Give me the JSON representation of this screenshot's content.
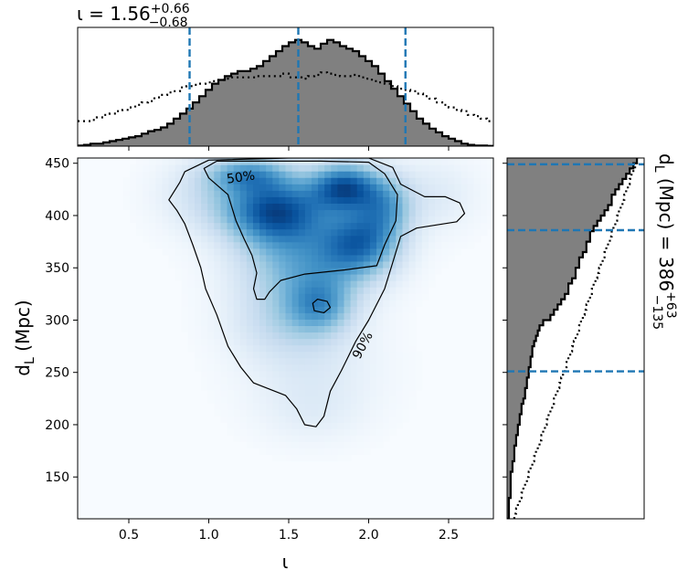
{
  "chart_data": [
    {
      "type": "heatmap",
      "panel": "joint-density",
      "xlabel": "ι",
      "ylabel": "d_L (Mpc)",
      "xlim": [
        0.18,
        2.78
      ],
      "ylim": [
        110,
        455
      ],
      "xticks": [
        0.5,
        1.0,
        1.5,
        2.0,
        2.5
      ],
      "xtick_labels": [
        "0.5",
        "1.0",
        "1.5",
        "2.0",
        "2.5"
      ],
      "yticks": [
        150,
        200,
        250,
        300,
        350,
        400,
        450
      ],
      "ytick_labels": [
        "150",
        "200",
        "250",
        "300",
        "350",
        "400",
        "450"
      ],
      "colormap": "Blues",
      "blobs": [
        {
          "x": 1.42,
          "y": 405,
          "sx": 0.22,
          "sy": 22,
          "w": 1.0
        },
        {
          "x": 1.85,
          "y": 428,
          "sx": 0.15,
          "sy": 16,
          "w": 0.95
        },
        {
          "x": 1.95,
          "y": 375,
          "sx": 0.17,
          "sy": 22,
          "w": 0.75
        },
        {
          "x": 1.6,
          "y": 355,
          "sx": 0.28,
          "sy": 28,
          "w": 0.55
        },
        {
          "x": 1.25,
          "y": 440,
          "sx": 0.18,
          "sy": 12,
          "w": 0.55
        },
        {
          "x": 2.1,
          "y": 410,
          "sx": 0.12,
          "sy": 20,
          "w": 0.5
        },
        {
          "x": 1.7,
          "y": 315,
          "sx": 0.14,
          "sy": 18,
          "w": 0.45
        },
        {
          "x": 1.5,
          "y": 300,
          "sx": 0.25,
          "sy": 25,
          "w": 0.28
        },
        {
          "x": 1.65,
          "y": 250,
          "sx": 0.3,
          "sy": 35,
          "w": 0.14
        },
        {
          "x": 1.65,
          "y": 210,
          "sx": 0.22,
          "sy": 20,
          "w": 0.07
        },
        {
          "x": 1.0,
          "y": 420,
          "sx": 0.22,
          "sy": 25,
          "w": 0.22
        },
        {
          "x": 2.4,
          "y": 420,
          "sx": 0.2,
          "sy": 25,
          "w": 0.15
        }
      ],
      "contours": [
        {
          "label": "50%",
          "label_position": [
            1.2,
            437
          ],
          "label_rotation": -8,
          "points": [
            [
              0.97,
              445
            ],
            [
              1.05,
              452
            ],
            [
              1.4,
              452
            ],
            [
              1.7,
              452
            ],
            [
              2.0,
              451
            ],
            [
              2.1,
              440
            ],
            [
              2.18,
              420
            ],
            [
              2.17,
              395
            ],
            [
              2.1,
              372
            ],
            [
              2.05,
              352
            ],
            [
              1.85,
              348
            ],
            [
              1.6,
              344
            ],
            [
              1.45,
              338
            ],
            [
              1.38,
              327
            ],
            [
              1.35,
              320
            ],
            [
              1.3,
              320
            ],
            [
              1.28,
              330
            ],
            [
              1.3,
              345
            ],
            [
              1.27,
              362
            ],
            [
              1.22,
              378
            ],
            [
              1.17,
              395
            ],
            [
              1.12,
              420
            ],
            [
              1.0,
              436
            ],
            [
              0.97,
              445
            ]
          ]
        },
        {
          "label": "90%",
          "label_position": [
            1.96,
            276
          ],
          "label_rotation": -62,
          "points": [
            [
              0.82,
              432
            ],
            [
              0.85,
              442
            ],
            [
              1.0,
              453
            ],
            [
              1.5,
              455
            ],
            [
              2.0,
              455
            ],
            [
              2.15,
              446
            ],
            [
              2.2,
              430
            ],
            [
              2.35,
              418
            ],
            [
              2.48,
              418
            ],
            [
              2.57,
              412
            ],
            [
              2.6,
              402
            ],
            [
              2.55,
              394
            ],
            [
              2.3,
              388
            ],
            [
              2.2,
              380
            ],
            [
              2.15,
              355
            ],
            [
              2.1,
              330
            ],
            [
              2.0,
              300
            ],
            [
              1.92,
              280
            ],
            [
              1.83,
              252
            ],
            [
              1.76,
              232
            ],
            [
              1.72,
              208
            ],
            [
              1.67,
              198
            ],
            [
              1.6,
              200
            ],
            [
              1.55,
              215
            ],
            [
              1.48,
              228
            ],
            [
              1.28,
              240
            ],
            [
              1.2,
              255
            ],
            [
              1.12,
              275
            ],
            [
              1.05,
              305
            ],
            [
              0.98,
              330
            ],
            [
              0.95,
              350
            ],
            [
              0.9,
              372
            ],
            [
              0.85,
              392
            ],
            [
              0.8,
              405
            ],
            [
              0.75,
              415
            ],
            [
              0.82,
              432
            ]
          ]
        },
        {
          "label": "",
          "points": [
            [
              1.65,
              316
            ],
            [
              1.68,
              320
            ],
            [
              1.74,
              318
            ],
            [
              1.76,
              312
            ],
            [
              1.72,
              307
            ],
            [
              1.66,
              309
            ],
            [
              1.65,
              316
            ]
          ]
        }
      ]
    },
    {
      "type": "histogram",
      "panel": "marginal-iota",
      "title": "ι = 1.56",
      "title_sup": "+0.66",
      "title_sub": "−0.68",
      "xlim": [
        0.18,
        2.78
      ],
      "bin_edges_start": 0.18,
      "bin_width": 0.04,
      "values": [
        0.5,
        1,
        2,
        2,
        3,
        4,
        5,
        6,
        7,
        8,
        10,
        12,
        13,
        15,
        18,
        22,
        26,
        30,
        35,
        40,
        45,
        50,
        53,
        56,
        58,
        60,
        60,
        62,
        64,
        68,
        72,
        76,
        80,
        83,
        85,
        83,
        80,
        78,
        82,
        85,
        83,
        80,
        78,
        76,
        72,
        68,
        64,
        58,
        52,
        46,
        40,
        34,
        28,
        22,
        18,
        14,
        11,
        8,
        6,
        4,
        2,
        1,
        0.5,
        0.5,
        0.2
      ],
      "prior_values": [
        20,
        20,
        21,
        23,
        25,
        26,
        28,
        29,
        31,
        33,
        35,
        36,
        39,
        41,
        43,
        44,
        47,
        48,
        49,
        50,
        51,
        52,
        53,
        54,
        55,
        55,
        55,
        55,
        56,
        56,
        56,
        56,
        58,
        55,
        55,
        54,
        56,
        57,
        59,
        58,
        57,
        56,
        56,
        57,
        55,
        54,
        52,
        51,
        50,
        48,
        46,
        45,
        44,
        42,
        40,
        38,
        35,
        33,
        31,
        29,
        28,
        25,
        24,
        22,
        20
      ],
      "quantile_lines": [
        0.88,
        1.56,
        2.23
      ],
      "ymax": 95
    },
    {
      "type": "histogram",
      "panel": "marginal-distance",
      "orientation": "horizontal",
      "label": "d_L (Mpc) = 386",
      "label_sup": "+63",
      "label_sub": "−135",
      "ylim": [
        110,
        455
      ],
      "bin_edges_start": 110,
      "bin_width": 5,
      "values": [
        0.5,
        0.5,
        0.5,
        0.5,
        1,
        1,
        1,
        1,
        1,
        1.5,
        1.5,
        2,
        2,
        2,
        2.5,
        2.5,
        3,
        3,
        3.5,
        3.5,
        4,
        4,
        4.5,
        5,
        5,
        5.5,
        5.5,
        6,
        6,
        6.5,
        6.5,
        7,
        7,
        7.5,
        8,
        8.5,
        9,
        10,
        12,
        13,
        14,
        15,
        16,
        17,
        17,
        18,
        19,
        19,
        20,
        20,
        21,
        22,
        22,
        23,
        23,
        24,
        25,
        26,
        27,
        28,
        29,
        29,
        30,
        31,
        32,
        33,
        34,
        35,
        36
      ],
      "prior_values": [
        2,
        2.5,
        3,
        3.5,
        4,
        4.5,
        5,
        5.5,
        6,
        6.5,
        7,
        7.5,
        8,
        8.5,
        9,
        9.5,
        10,
        10.5,
        11,
        11.5,
        12,
        12.5,
        13,
        13.5,
        14,
        14.5,
        15,
        15.5,
        16,
        16.5,
        17,
        17.5,
        18,
        18.5,
        19,
        19.5,
        20,
        20.5,
        21,
        21.5,
        22,
        22.5,
        23,
        23.5,
        24,
        24.5,
        25,
        25.5,
        26,
        26.5,
        27,
        27.5,
        28,
        28.5,
        29,
        29.5,
        30,
        30.5,
        31,
        31.5,
        32,
        32.5,
        33,
        33.5,
        34,
        34.5,
        35,
        35.5,
        36
      ],
      "quantile_lines": [
        251,
        386,
        449
      ],
      "xmax": 38
    }
  ]
}
